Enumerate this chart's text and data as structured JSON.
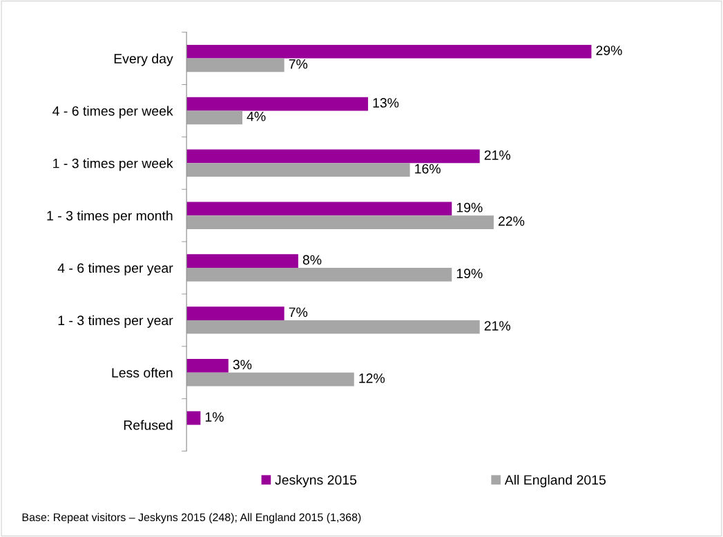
{
  "chart_data": {
    "type": "bar",
    "orientation": "horizontal",
    "legend": "bottom",
    "grid": false,
    "categories": [
      "Every day",
      "4 - 6 times per week",
      "1 - 3 times per week",
      "1 - 3 times per month",
      "4 - 6 times per year",
      "1 - 3 times per year",
      "Less often",
      "Refused"
    ],
    "series": [
      {
        "name": "Jeskyns 2015",
        "color": "#990099",
        "values": [
          29,
          13,
          21,
          19,
          8,
          7,
          3,
          1
        ],
        "value_labels": [
          "29%",
          "13%",
          "21%",
          "19%",
          "8%",
          "7%",
          "3%",
          "1%"
        ]
      },
      {
        "name": "All England 2015",
        "color": "#a6a6a6",
        "values": [
          7,
          4,
          16,
          22,
          19,
          21,
          12,
          null
        ],
        "value_labels": [
          "7%",
          "4%",
          "16%",
          "22%",
          "19%",
          "21%",
          "12%",
          null
        ]
      }
    ],
    "annotations": [
      "Base: Repeat visitors – Jeskyns 2015 (248); All England 2015 (1,368)"
    ]
  }
}
